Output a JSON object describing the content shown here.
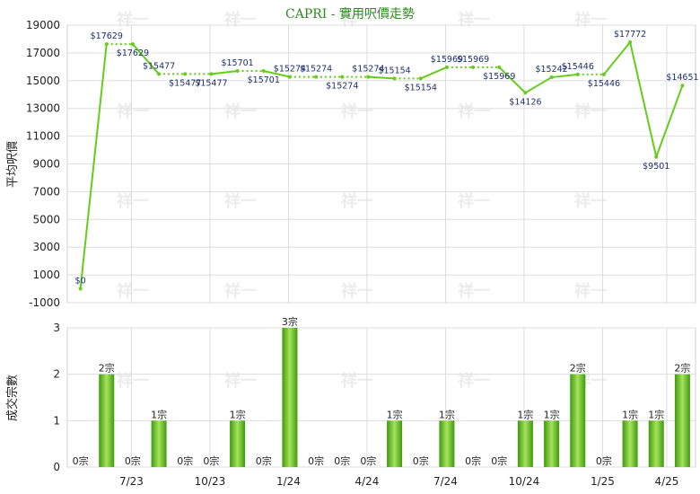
{
  "colors": {
    "line": "#66cc1a",
    "bar_dark": "#3f9a0c",
    "bar_light": "#a6e35c",
    "label": "#1d2f6f"
  },
  "watermark": "祥一",
  "chart_data": [
    {
      "type": "line",
      "title": "CAPRI - 實用呎價走勢",
      "ylabel": "平均呎價",
      "ylim": [
        -1000,
        19000
      ],
      "yticks": [
        -1000,
        1000,
        3000,
        5000,
        7000,
        9000,
        11000,
        13000,
        15000,
        17000,
        19000
      ],
      "xticks": [
        "7/23",
        "10/23",
        "1/24",
        "4/24",
        "7/24",
        "10/24",
        "1/25",
        "4/25"
      ],
      "grid": true,
      "points": [
        {
          "x": 0,
          "y": 0,
          "label": "$0",
          "dotted_next": false
        },
        {
          "x": 1,
          "y": 17629,
          "label": "$17629",
          "dotted_next": true
        },
        {
          "x": 2,
          "y": 17629,
          "label": "$17629",
          "dotted_next": false
        },
        {
          "x": 3,
          "y": 15477,
          "label": "$15477",
          "dotted_next": true
        },
        {
          "x": 4,
          "y": 15477,
          "label": "$15477",
          "dotted_next": true
        },
        {
          "x": 5,
          "y": 15477,
          "label": "$15477",
          "dotted_next": false
        },
        {
          "x": 6,
          "y": 15701,
          "label": "$15701",
          "dotted_next": true
        },
        {
          "x": 7,
          "y": 15701,
          "label": "$15701",
          "dotted_next": false
        },
        {
          "x": 8,
          "y": 15274,
          "label": "$15274",
          "dotted_next": true
        },
        {
          "x": 9,
          "y": 15274,
          "label": "$15274",
          "dotted_next": true
        },
        {
          "x": 10,
          "y": 15274,
          "label": "$15274",
          "dotted_next": true
        },
        {
          "x": 11,
          "y": 15274,
          "label": "$15274",
          "dotted_next": false
        },
        {
          "x": 12,
          "y": 15154,
          "label": "$15154",
          "dotted_next": true
        },
        {
          "x": 13,
          "y": 15154,
          "label": "$15154",
          "dotted_next": false
        },
        {
          "x": 14,
          "y": 15969,
          "label": "$15969",
          "dotted_next": true
        },
        {
          "x": 15,
          "y": 15969,
          "label": "$15969",
          "dotted_next": true
        },
        {
          "x": 16,
          "y": 15969,
          "label": "$15969",
          "dotted_next": false
        },
        {
          "x": 17,
          "y": 14126,
          "label": "$14126",
          "dotted_next": false
        },
        {
          "x": 18,
          "y": 15242,
          "label": "$15242",
          "dotted_next": false
        },
        {
          "x": 19,
          "y": 15446,
          "label": "$15446",
          "dotted_next": true
        },
        {
          "x": 20,
          "y": 15446,
          "label": "$15446",
          "dotted_next": false
        },
        {
          "x": 21,
          "y": 17772,
          "label": "$17772",
          "dotted_next": false
        },
        {
          "x": 22,
          "y": 9501,
          "label": "$9501",
          "dotted_next": false
        },
        {
          "x": 23,
          "y": 14651,
          "label": "$14651",
          "dotted_next": false
        }
      ]
    },
    {
      "type": "bar",
      "ylabel": "成交宗數",
      "ylim": [
        0,
        3
      ],
      "yticks": [
        0,
        1,
        2,
        3
      ],
      "xticks": [
        "7/23",
        "10/23",
        "1/24",
        "4/24",
        "7/24",
        "10/24",
        "1/25",
        "4/25"
      ],
      "unit": "宗",
      "values": [
        0,
        2,
        0,
        1,
        0,
        0,
        1,
        0,
        3,
        0,
        0,
        0,
        1,
        0,
        1,
        0,
        0,
        1,
        1,
        2,
        0,
        1,
        1,
        2
      ]
    }
  ]
}
